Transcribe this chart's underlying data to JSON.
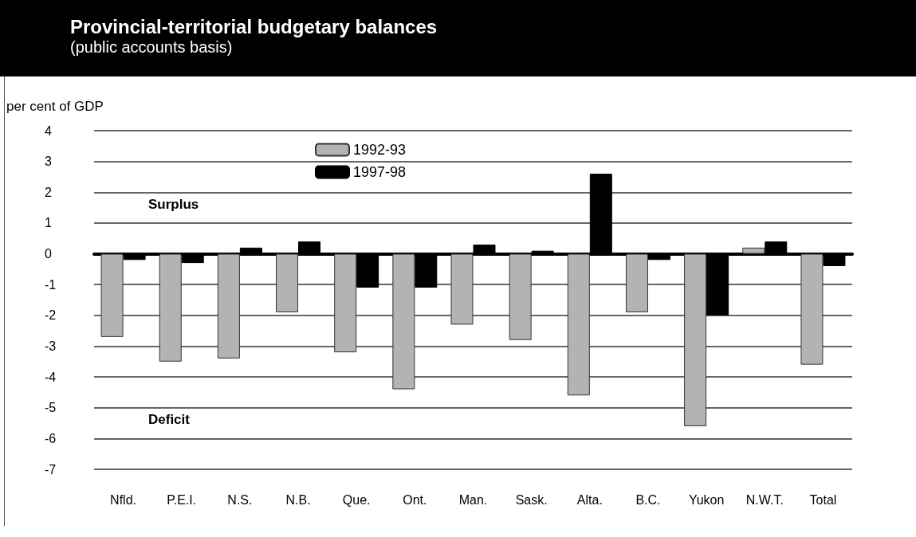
{
  "chart_data": {
    "type": "bar",
    "title": "Provincial-territorial budgetary balances",
    "subtitle": "(public accounts basis)",
    "ylabel": "per cent of GDP",
    "categories": [
      "Nfld.",
      "P.E.I.",
      "N.S.",
      "N.B.",
      "Que.",
      "Ont.",
      "Man.",
      "Sask.",
      "Alta.",
      "B.C.",
      "Yukon",
      "N.W.T.",
      "Total"
    ],
    "series": [
      {
        "name": "1992-93",
        "color": "#b3b3b3",
        "values": [
          -2.7,
          -3.5,
          -3.4,
          -1.9,
          -3.2,
          -4.4,
          -2.3,
          -2.8,
          -4.6,
          -1.9,
          -5.6,
          0.2,
          -3.6
        ]
      },
      {
        "name": "1997-98",
        "color": "#000000",
        "values": [
          -0.2,
          -0.3,
          0.2,
          0.4,
          -1.1,
          -1.1,
          0.3,
          0.1,
          2.6,
          -0.2,
          -2.0,
          0.4,
          -0.4
        ]
      }
    ],
    "ylim": [
      -7,
      4
    ],
    "yticks": [
      -7,
      -6,
      -5,
      -4,
      -3,
      -2,
      -1,
      0,
      1,
      2,
      3,
      4
    ],
    "grid": "y",
    "legend": "top",
    "annotations": [
      "Surplus",
      "Deficit"
    ]
  }
}
